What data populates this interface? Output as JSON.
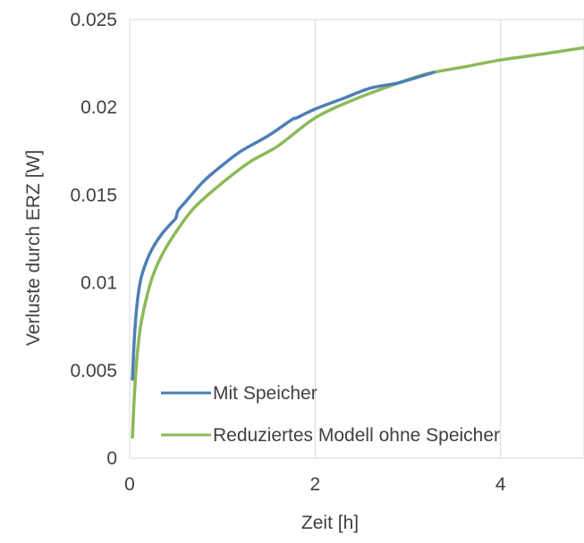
{
  "chart_data": {
    "type": "line",
    "xlabel": "Zeit [h]",
    "ylabel": "Verluste durch ERZ [W]",
    "xlim": [
      0,
      4.9
    ],
    "ylim": [
      0,
      0.025
    ],
    "x_ticks": [
      0,
      2,
      4
    ],
    "x_tick_labels": [
      "0",
      "2",
      "4"
    ],
    "y_ticks": [
      0,
      0.005,
      0.01,
      0.015,
      0.02,
      0.025
    ],
    "y_tick_labels": [
      "0",
      "0.005",
      "0.01",
      "0.015",
      "0.02",
      "0.025"
    ],
    "grid": "vertical",
    "legend_position": "bottom-right",
    "series": [
      {
        "name": "Mit Speicher",
        "color": "#4e7fb5",
        "x": [
          0.03,
          0.05,
          0.08,
          0.12,
          0.18,
          0.25,
          0.35,
          0.45,
          0.5,
          0.52,
          0.6,
          0.8,
          1.0,
          1.2,
          1.5,
          1.75,
          1.8,
          2.0,
          2.3,
          2.6,
          2.9,
          3.28
        ],
        "y": [
          0.0045,
          0.0068,
          0.0088,
          0.0102,
          0.0112,
          0.012,
          0.0128,
          0.0134,
          0.0137,
          0.0141,
          0.0146,
          0.0158,
          0.0167,
          0.0175,
          0.0184,
          0.0193,
          0.0194,
          0.0199,
          0.0205,
          0.0211,
          0.0214,
          0.022
        ]
      },
      {
        "name": "Reduziertes Modell ohne Speicher",
        "color": "#8db959",
        "x": [
          0.03,
          0.05,
          0.08,
          0.12,
          0.18,
          0.25,
          0.35,
          0.5,
          0.7,
          1.0,
          1.3,
          1.6,
          2.0,
          2.4,
          2.8,
          3.2,
          3.6,
          4.0,
          4.4,
          4.9
        ],
        "y": [
          0.0012,
          0.0035,
          0.0058,
          0.0076,
          0.0091,
          0.0104,
          0.0116,
          0.0129,
          0.0143,
          0.0157,
          0.0169,
          0.0178,
          0.0194,
          0.0204,
          0.0212,
          0.0219,
          0.0223,
          0.0227,
          0.023,
          0.0234
        ]
      }
    ]
  }
}
